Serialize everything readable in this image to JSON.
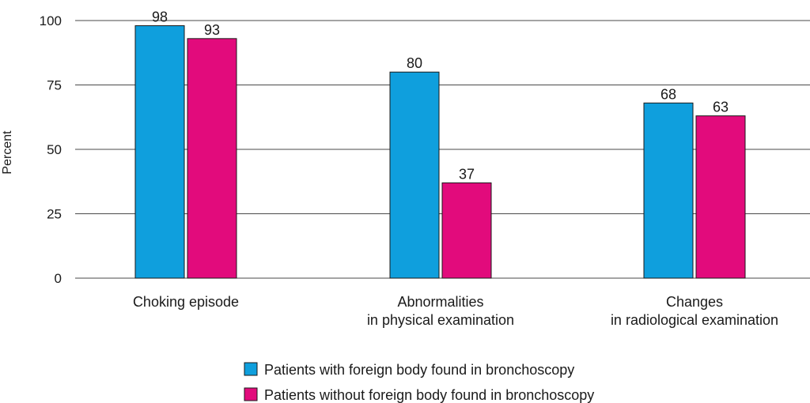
{
  "chart_data": {
    "type": "bar",
    "categories": [
      [
        "Choking episode"
      ],
      [
        "Abnormalities",
        "in physical examination"
      ],
      [
        "Changes",
        "in radiological examination"
      ]
    ],
    "series": [
      {
        "name": "Patients with foreign body found in bronchoscopy",
        "values": [
          98,
          80,
          68
        ],
        "color": "#0f9fdd"
      },
      {
        "name": "Patients without foreign body found in bronchoscopy",
        "values": [
          93,
          37,
          63
        ],
        "color": "#e20b7c"
      }
    ],
    "ylabel": "Percent",
    "ylim": [
      0,
      100
    ],
    "yticks": [
      0,
      25,
      50,
      75,
      100
    ],
    "grid": true,
    "legend_position": "bottom"
  }
}
